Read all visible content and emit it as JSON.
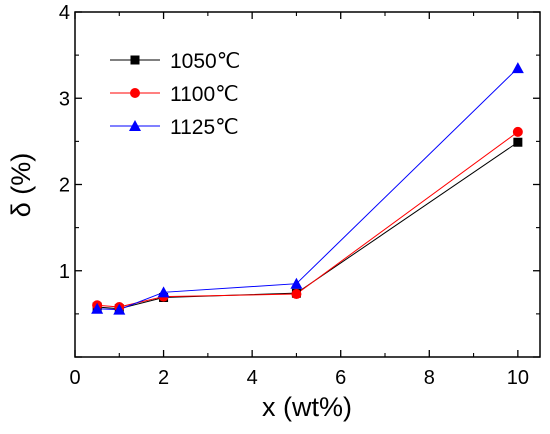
{
  "chart_data": {
    "type": "line",
    "xlabel": "x (wt%)",
    "ylabel": "δ (%)",
    "xlim": [
      0,
      10.5
    ],
    "ylim": [
      0,
      4
    ],
    "x_ticks": [
      0,
      2,
      4,
      6,
      8,
      10
    ],
    "y_ticks": [
      0,
      1,
      2,
      3,
      4
    ],
    "x_tick_labels": [
      "0",
      "2",
      "4",
      "6",
      "8",
      "10"
    ],
    "y_tick_labels": [
      "",
      "1",
      "2",
      "3",
      "4"
    ],
    "legend_position": "top-left",
    "grid": false,
    "series": [
      {
        "name": "1050℃",
        "color": "#000000",
        "marker": "square",
        "x": [
          0.5,
          1,
          2,
          5,
          10
        ],
        "y": [
          0.58,
          0.56,
          0.69,
          0.74,
          2.49
        ]
      },
      {
        "name": "1100℃",
        "color": "#ff0000",
        "marker": "circle",
        "x": [
          0.5,
          1,
          2,
          5,
          10
        ],
        "y": [
          0.6,
          0.58,
          0.7,
          0.73,
          2.61
        ]
      },
      {
        "name": "1125℃",
        "color": "#0000ff",
        "marker": "triangle",
        "x": [
          0.5,
          1,
          2,
          5,
          10
        ],
        "y": [
          0.56,
          0.55,
          0.75,
          0.85,
          3.35
        ]
      }
    ]
  }
}
